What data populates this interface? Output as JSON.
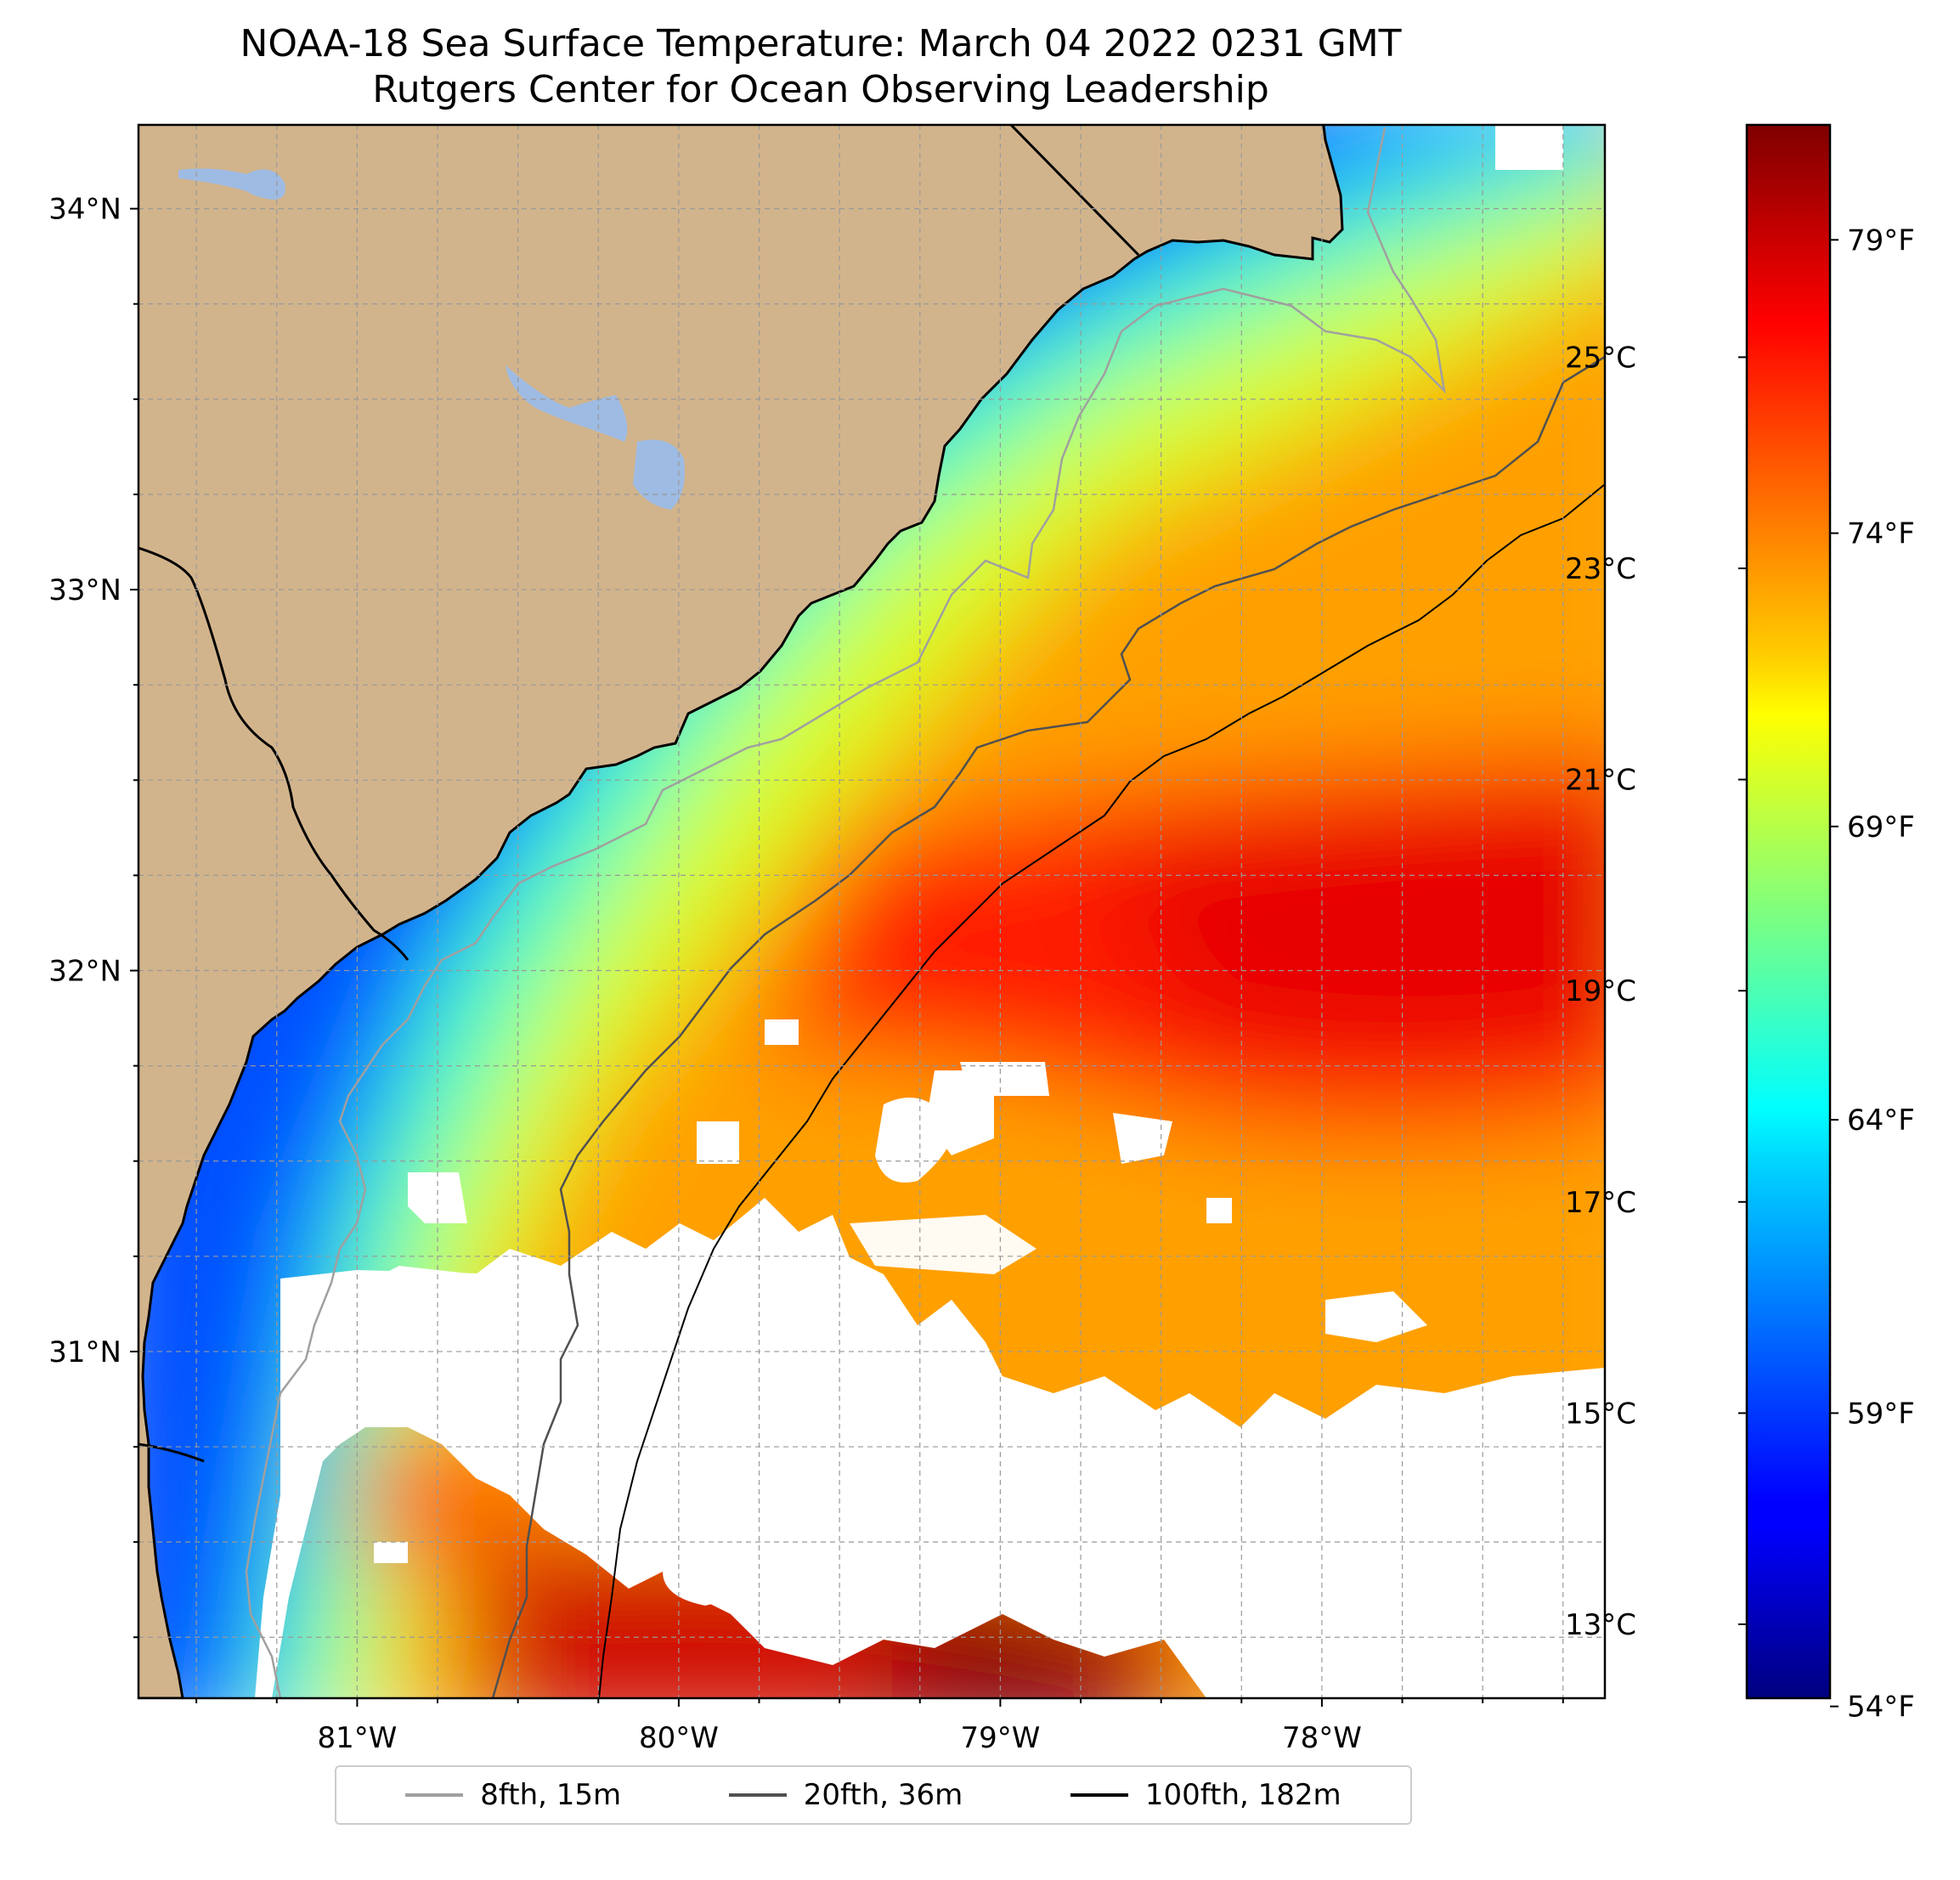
{
  "title": {
    "line1": "NOAA-18 Sea Surface Temperature: March 04 2022 0231 GMT",
    "line2": "Rutgers Center for Ocean Observing Leadership"
  },
  "map": {
    "lon_range": [
      -81.68,
      -77.12
    ],
    "lat_range": [
      30.09,
      34.22
    ],
    "lon_ticks": [
      {
        "value": -81,
        "label": "81°W"
      },
      {
        "value": -80,
        "label": "80°W"
      },
      {
        "value": -79,
        "label": "79°W"
      },
      {
        "value": -78,
        "label": "78°W"
      }
    ],
    "lat_ticks": [
      {
        "value": 31,
        "label": "31°N"
      },
      {
        "value": 32,
        "label": "32°N"
      },
      {
        "value": 33,
        "label": "33°N"
      },
      {
        "value": 34,
        "label": "34°N"
      }
    ],
    "grid": true,
    "land_color": "#d2b48c",
    "lake_color": "#9ebbe3",
    "no_data_color": "#ffffff"
  },
  "colorbar": {
    "colormap": "jet",
    "range_c": [
      12.3,
      27.2
    ],
    "celsius_ticks": [
      {
        "value": 13,
        "label": "13°C"
      },
      {
        "value": 15,
        "label": "15°C"
      },
      {
        "value": 17,
        "label": "17°C"
      },
      {
        "value": 19,
        "label": "19°C"
      },
      {
        "value": 21,
        "label": "21°C"
      },
      {
        "value": 23,
        "label": "23°C"
      },
      {
        "value": 25,
        "label": "25°C"
      }
    ],
    "fahrenheit_ticks": [
      {
        "value": 54,
        "label": "54°F"
      },
      {
        "value": 59,
        "label": "59°F"
      },
      {
        "value": 64,
        "label": "64°F"
      },
      {
        "value": 69,
        "label": "69°F"
      },
      {
        "value": 74,
        "label": "74°F"
      },
      {
        "value": 79,
        "label": "79°F"
      }
    ]
  },
  "legend": [
    {
      "label": "8fth, 15m",
      "color": "#a0a0a0"
    },
    {
      "label": "20fth, 36m",
      "color": "#505050"
    },
    {
      "label": "100fth, 182m",
      "color": "#000000"
    }
  ]
}
